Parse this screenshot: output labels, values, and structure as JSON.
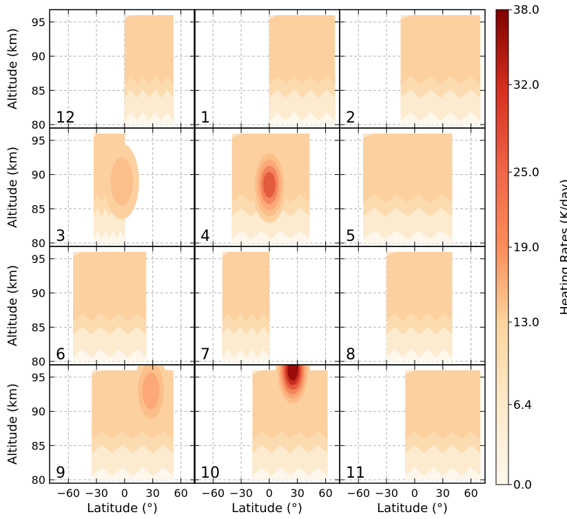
{
  "chart_data": {
    "type": "heatmap",
    "panels": [
      {
        "label": "12",
        "lat_range": [
          0,
          52
        ]
      },
      {
        "label": "1",
        "lat_range": [
          0,
          70
        ]
      },
      {
        "label": "2",
        "lat_range": [
          -15,
          70
        ]
      },
      {
        "label": "3",
        "lat_range": [
          -33,
          0
        ]
      },
      {
        "label": "4",
        "lat_range": [
          -40,
          43
        ]
      },
      {
        "label": "5",
        "lat_range": [
          -55,
          40
        ]
      },
      {
        "label": "6",
        "lat_range": [
          -55,
          23
        ]
      },
      {
        "label": "7",
        "lat_range": [
          -50,
          0
        ]
      },
      {
        "label": "8",
        "lat_range": [
          -30,
          40
        ]
      },
      {
        "label": "9",
        "lat_range": [
          -35,
          52
        ]
      },
      {
        "label": "10",
        "lat_range": [
          -18,
          62
        ]
      },
      {
        "label": "11",
        "lat_range": [
          -10,
          70
        ]
      }
    ],
    "xlabel": "Latitude (°)",
    "ylabel": "Altitude (km)",
    "xticks": [
      "−60",
      "−30",
      "0",
      "30",
      "60"
    ],
    "yticks": [
      "80",
      "85",
      "90",
      "95"
    ],
    "xlim": [
      -80,
      75
    ],
    "ylim": [
      79.5,
      96.8
    ],
    "alt_range": [
      80,
      96
    ],
    "grid": true,
    "colorbar": {
      "label": "Heating Rates (K/day)",
      "ticks": [
        "0.0",
        "6.4",
        "13.0",
        "19.0",
        "25.0",
        "32.0",
        "38.0"
      ],
      "range": [
        0,
        38
      ],
      "colormap": "OrRd"
    },
    "peaks": [
      {
        "panel": "4",
        "lat": 0,
        "alt": 88.5,
        "value": 30
      },
      {
        "panel": "10",
        "lat": 25,
        "alt": 96,
        "value": 38
      },
      {
        "panel": "9",
        "lat": 28,
        "alt": 93,
        "value": 20
      },
      {
        "panel": "3",
        "lat": -3,
        "alt": 89,
        "value": 18
      }
    ]
  }
}
